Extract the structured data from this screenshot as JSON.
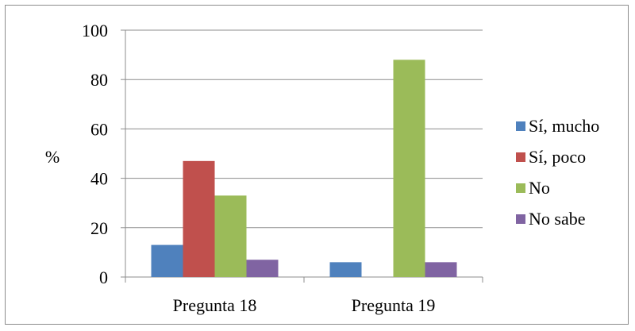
{
  "chart_data": {
    "type": "bar",
    "title": "",
    "xlabel": "",
    "ylabel": "%",
    "ylim": [
      0,
      100
    ],
    "yticks": [
      0,
      20,
      40,
      60,
      80,
      100
    ],
    "grid": true,
    "legend_position": "right",
    "categories": [
      "Pregunta 18",
      "Pregunta 19"
    ],
    "series": [
      {
        "name": "Sí, mucho",
        "color": "#4f81bd",
        "values": [
          13,
          6
        ]
      },
      {
        "name": "Sí, poco",
        "color": "#c0504d",
        "values": [
          47,
          0
        ]
      },
      {
        "name": "No",
        "color": "#9bbb59",
        "values": [
          33,
          88
        ]
      },
      {
        "name": "No sabe",
        "color": "#8064a2",
        "values": [
          7,
          6
        ]
      }
    ]
  }
}
